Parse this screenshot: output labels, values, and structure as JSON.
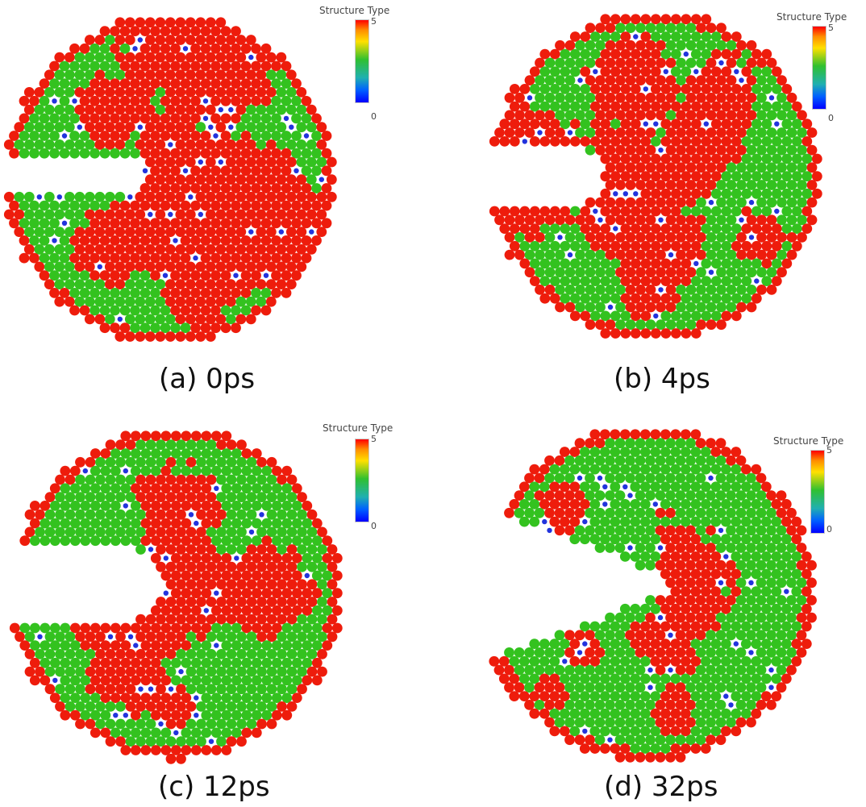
{
  "legend": {
    "title": "Structure Type",
    "max": "5",
    "min": "0"
  },
  "panels": [
    {
      "caption": "(a) 0ps"
    },
    {
      "caption": "(b) 4ps"
    },
    {
      "caption": "(c) 12ps"
    },
    {
      "caption": "(d) 32ps"
    }
  ],
  "colors": {
    "structure_5": "#ee1c0c",
    "structure_1": "#33c21f",
    "structure_0": "#2233dd",
    "background": "#ffffff"
  }
}
